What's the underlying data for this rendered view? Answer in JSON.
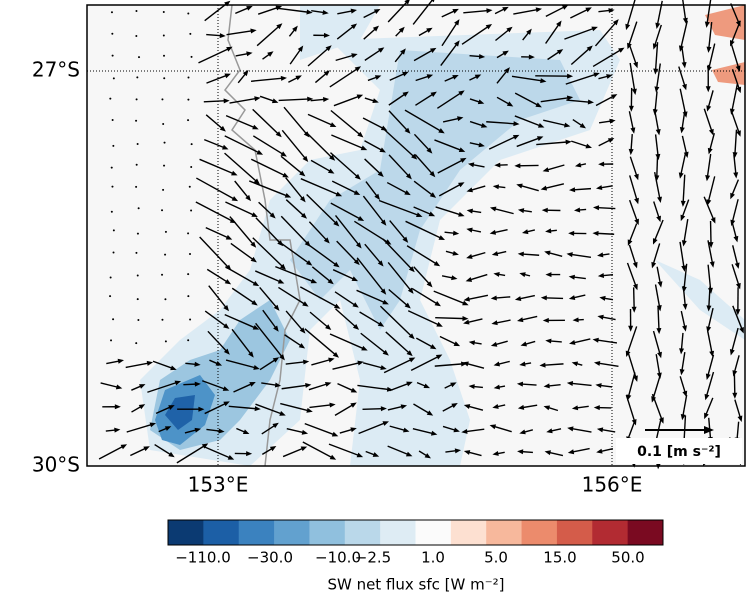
{
  "map": {
    "lat_labels": [
      "27°S",
      "30°S"
    ],
    "lon_labels": [
      "153°E",
      "156°E"
    ],
    "quiver_key": "0.1 [m s⁻²]",
    "colorbar": {
      "ticks": [
        "−110.0",
        "−30.0",
        "−10.0",
        "−2.5",
        "1.0",
        "5.0",
        "15.0",
        "50.0"
      ],
      "label": "SW  net flux sfc [W m⁻²]",
      "colors": [
        "#0b3a72",
        "#1c5fa6",
        "#3b82bf",
        "#62a1cf",
        "#90c0de",
        "#bad8ea",
        "#deecf4",
        "#fbfbfb",
        "#fde0d1",
        "#f7b89c",
        "#ec8b6c",
        "#d45c4a",
        "#b22b32",
        "#7a0a21"
      ]
    }
  }
}
